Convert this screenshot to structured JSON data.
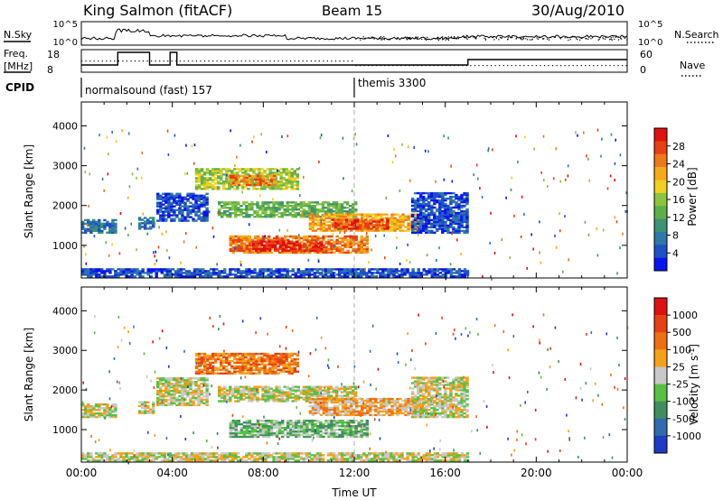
{
  "header": {
    "station": "King Salmon (fitACF)",
    "beam": "Beam 15",
    "date": "30/Aug/2010"
  },
  "noise_panel": {
    "left_label": "N.Sky",
    "right_label": "N.Search",
    "left_ticks": [
      "10^5",
      "10^0"
    ],
    "right_ticks": [
      "10^5",
      "10^0"
    ]
  },
  "freq_panel": {
    "left_label_1": "Freq.",
    "left_label_2": "[MHz]",
    "left_ticks": [
      "18",
      "8"
    ],
    "right_label": "Nave",
    "right_ticks": [
      "60",
      "0"
    ]
  },
  "cpid": {
    "label": "CPID",
    "segments": [
      {
        "start_hour": 0,
        "text": "normalsound (fast) 157"
      },
      {
        "start_hour": 12,
        "text": "themis 3300"
      }
    ]
  },
  "chart_data": [
    {
      "type": "heatmap",
      "name": "power",
      "ylabel": "Slant Range [km]",
      "yticks": [
        "4000",
        "3000",
        "2000",
        "1000"
      ],
      "ytick_values": [
        4000,
        3000,
        2000,
        1000
      ],
      "ylim": [
        180,
        4600
      ],
      "xlim_hours": [
        0,
        24
      ],
      "colorbar": {
        "label": "Power [dB]",
        "ticks": [
          "28",
          "24",
          "20",
          "16",
          "12",
          "8",
          "4"
        ],
        "colors": [
          "#0a14f0",
          "#1e50c8",
          "#2e78a8",
          "#3c9472",
          "#5cb04a",
          "#8cc43c",
          "#f0d020",
          "#f8a818",
          "#f07818",
          "#e84010",
          "#e01010"
        ]
      },
      "regions": [
        {
          "t0": 0.0,
          "t1": 1.5,
          "r0": 1300,
          "r1": 1650,
          "c": 2
        },
        {
          "t0": 2.5,
          "t1": 3.2,
          "r0": 1400,
          "r1": 1700,
          "c": 2
        },
        {
          "t0": 3.3,
          "t1": 5.5,
          "r0": 1600,
          "r1": 2300,
          "c": 1
        },
        {
          "t0": 5.0,
          "t1": 9.5,
          "r0": 2400,
          "r1": 2900,
          "c": 5
        },
        {
          "t0": 6.5,
          "t1": 8.5,
          "r0": 2500,
          "r1": 2750,
          "c": 8
        },
        {
          "t0": 6.0,
          "t1": 12.0,
          "r0": 1700,
          "r1": 2100,
          "c": 4
        },
        {
          "t0": 6.5,
          "t1": 12.5,
          "r0": 800,
          "r1": 1250,
          "c": 8
        },
        {
          "t0": 7.5,
          "t1": 10.5,
          "r0": 850,
          "r1": 1100,
          "c": 10
        },
        {
          "t0": 10.0,
          "t1": 15.0,
          "r0": 1350,
          "r1": 1800,
          "c": 7
        },
        {
          "t0": 11.0,
          "t1": 13.5,
          "r0": 1400,
          "r1": 1650,
          "c": 9
        },
        {
          "t0": 14.5,
          "t1": 17.0,
          "r0": 1300,
          "r1": 2300,
          "c": 1
        },
        {
          "t0": 0.0,
          "t1": 17.0,
          "r0": 200,
          "r1": 400,
          "c": 1
        }
      ]
    },
    {
      "type": "heatmap",
      "name": "velocity",
      "ylabel": "Slant Range [km]",
      "yticks": [
        "4000",
        "3000",
        "2000",
        "1000"
      ],
      "ytick_values": [
        4000,
        3000,
        2000,
        1000
      ],
      "ylim": [
        180,
        4600
      ],
      "xlim_hours": [
        0,
        24
      ],
      "xlabel": "Time UT",
      "xticks": [
        "00:00",
        "04:00",
        "08:00",
        "12:00",
        "16:00",
        "20:00",
        "00:00"
      ],
      "colorbar": {
        "label": "Velocity [m s",
        "label_sup": "-1",
        "label_end": "]",
        "ticks": [
          "1000",
          "500",
          "100",
          "25",
          "-25",
          "-100",
          "-500",
          "-1000"
        ],
        "colors": [
          "#1e3cc8",
          "#2e6cb0",
          "#3c9060",
          "#58c040",
          "#c8c8c8",
          "#f8a018",
          "#f07010",
          "#e84010",
          "#e01010"
        ]
      },
      "regions": [
        {
          "t0": 0.0,
          "t1": 1.5,
          "r0": 1300,
          "r1": 1650,
          "c": 4
        },
        {
          "t0": 2.5,
          "t1": 3.2,
          "r0": 1400,
          "r1": 1700,
          "c": 4
        },
        {
          "t0": 3.3,
          "t1": 5.5,
          "r0": 1600,
          "r1": 2300,
          "c": 4
        },
        {
          "t0": 5.0,
          "t1": 9.5,
          "r0": 2400,
          "r1": 2900,
          "c": 6
        },
        {
          "t0": 6.0,
          "t1": 12.0,
          "r0": 1700,
          "r1": 2100,
          "c": 4
        },
        {
          "t0": 6.5,
          "t1": 12.5,
          "r0": 800,
          "r1": 1250,
          "c": 3
        },
        {
          "t0": 10.0,
          "t1": 15.0,
          "r0": 1350,
          "r1": 1800,
          "c": 5
        },
        {
          "t0": 14.5,
          "t1": 17.0,
          "r0": 1300,
          "r1": 2300,
          "c": 4
        },
        {
          "t0": 0.0,
          "t1": 17.0,
          "r0": 200,
          "r1": 400,
          "c": 4
        }
      ]
    }
  ]
}
